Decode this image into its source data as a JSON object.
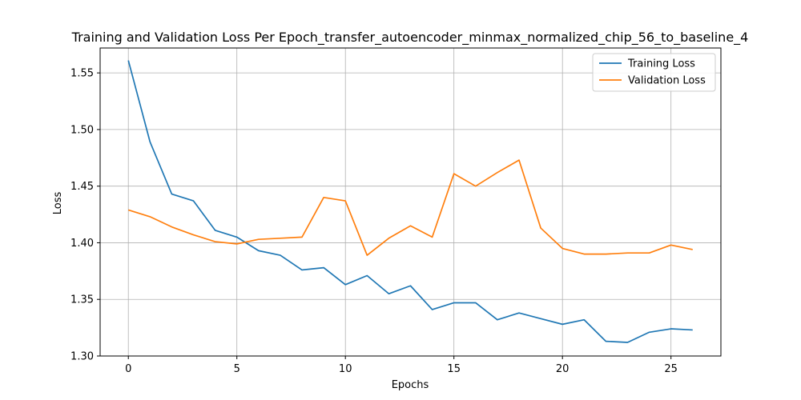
{
  "chart_data": {
    "type": "line",
    "title": "Training and Validation Loss Per Epoch_transfer_autoencoder_minmax_normalized_chip_56_to_baseline_4",
    "xlabel": "Epochs",
    "ylabel": "Loss",
    "xlim": [
      -1.3,
      27.3
    ],
    "ylim": [
      1.3,
      1.572
    ],
    "xticks": [
      0,
      5,
      10,
      15,
      20,
      25
    ],
    "yticks": [
      1.3,
      1.35,
      1.4,
      1.45,
      1.5,
      1.55
    ],
    "xtick_labels": [
      "0",
      "5",
      "10",
      "15",
      "20",
      "25"
    ],
    "ytick_labels": [
      "1.30",
      "1.35",
      "1.40",
      "1.45",
      "1.50",
      "1.55"
    ],
    "grid": true,
    "legend_position": "top-right",
    "x": [
      0,
      1,
      2,
      3,
      4,
      5,
      6,
      7,
      8,
      9,
      10,
      11,
      12,
      13,
      14,
      15,
      16,
      17,
      18,
      19,
      20,
      21,
      22,
      23,
      24,
      25,
      26
    ],
    "series": [
      {
        "name": "Training Loss",
        "color": "#1f77b4",
        "values": [
          1.561,
          1.489,
          1.443,
          1.437,
          1.411,
          1.405,
          1.393,
          1.389,
          1.376,
          1.378,
          1.363,
          1.371,
          1.355,
          1.362,
          1.341,
          1.347,
          1.347,
          1.332,
          1.338,
          1.333,
          1.328,
          1.332,
          1.313,
          1.312,
          1.321,
          1.324,
          1.323
        ]
      },
      {
        "name": "Validation Loss",
        "color": "#ff7f0e",
        "values": [
          1.429,
          1.423,
          1.414,
          1.407,
          1.401,
          1.399,
          1.403,
          1.404,
          1.405,
          1.44,
          1.437,
          1.389,
          1.404,
          1.415,
          1.405,
          1.461,
          1.45,
          1.462,
          1.473,
          1.413,
          1.395,
          1.39,
          1.39,
          1.391,
          1.391,
          1.398,
          1.394
        ]
      }
    ]
  }
}
